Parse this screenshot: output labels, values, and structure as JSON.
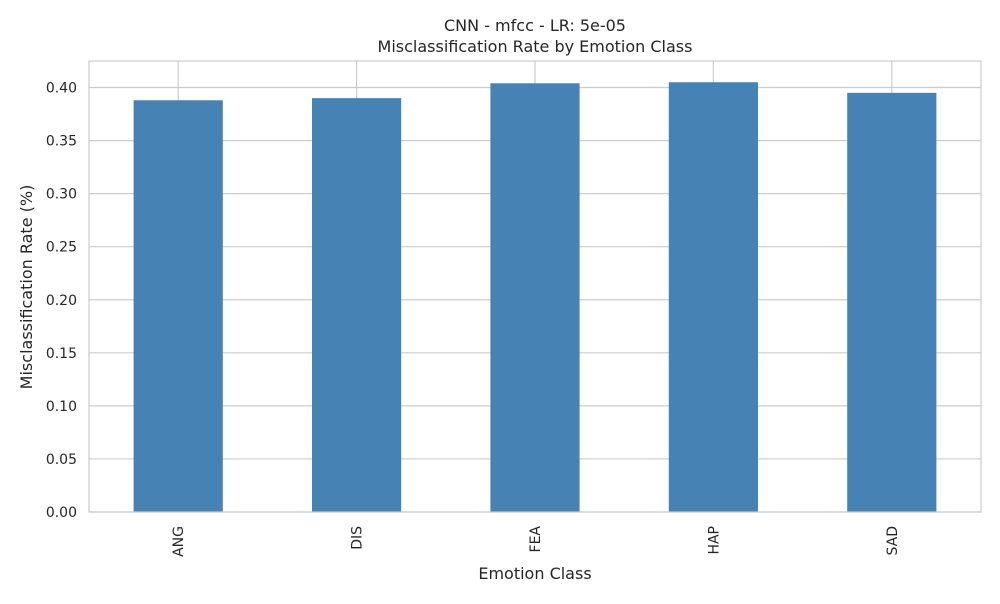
{
  "chart_data": {
    "type": "bar",
    "title_line1": "CNN - mfcc - LR: 5e-05",
    "title_line2": "Misclassification Rate by Emotion Class",
    "xlabel": "Emotion Class",
    "ylabel": "Misclassification Rate (%)",
    "categories": [
      "ANG",
      "DIS",
      "FEA",
      "HAP",
      "SAD"
    ],
    "values": [
      0.388,
      0.39,
      0.404,
      0.405,
      0.395
    ],
    "ylim": [
      0,
      0.425
    ],
    "yticks": [
      "0.00",
      "0.05",
      "0.10",
      "0.15",
      "0.20",
      "0.25",
      "0.30",
      "0.35",
      "0.40"
    ],
    "bar_color": "#4682b4",
    "grid_color": "#cccccc",
    "grid": true,
    "legend": "none"
  }
}
